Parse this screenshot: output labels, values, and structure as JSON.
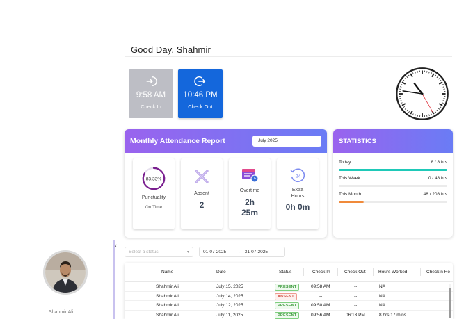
{
  "greeting": "Good Day, Shahmir",
  "check_in": {
    "time": "9:58 AM",
    "label": "Check In"
  },
  "check_out": {
    "time": "10:46 PM",
    "label": "Check Out"
  },
  "clock": {
    "hour": 10,
    "minute": 46,
    "second": 25
  },
  "report": {
    "title": "Monthly Attendance Report",
    "month": "July 2025",
    "cards": {
      "punctuality": {
        "percent_text": "83.33%",
        "percent": 83.33,
        "label": "Punctuality",
        "sub": "On Time"
      },
      "absent": {
        "label": "Absent",
        "value": "2"
      },
      "overtime": {
        "label": "Overtime",
        "value_h": "2h",
        "value_m": "25m"
      },
      "extra": {
        "label_1": "Extra",
        "label_2": "Hours",
        "value": "0h 0m"
      }
    }
  },
  "statistics": {
    "title": "STATISTICS",
    "rows": [
      {
        "label": "Today",
        "value": "8 / 8 hrs",
        "fraction": 1.0,
        "color": "#1fc9b8"
      },
      {
        "label": "This Week",
        "value": "0 / 48 hrs",
        "fraction": 0.0,
        "color": "#1fc9b8"
      },
      {
        "label": "This Month",
        "value": "48 / 208 hrs",
        "fraction": 0.23,
        "color": "#f08a3a"
      }
    ]
  },
  "profile": {
    "name": "Shahmir Ali"
  },
  "filters": {
    "status_placeholder": "Select a status",
    "date_from": "01-07-2025",
    "date_to": "31-07-2025",
    "arrow": "→"
  },
  "table": {
    "headers": [
      "Name",
      "Date",
      "Status",
      "Check In",
      "Check Out",
      "Hours Worked",
      "CheckIn Re"
    ],
    "rows": [
      {
        "name": "Shahmir Ali",
        "date": "July 15, 2025",
        "status": "PRESENT",
        "check_in": "09:58 AM",
        "check_out": "--",
        "hours": "NA"
      },
      {
        "name": "Shahmir Ali",
        "date": "July 14, 2025",
        "status": "ABSENT",
        "check_in": "--",
        "check_out": "--",
        "hours": "NA"
      },
      {
        "name": "Shahmir Ali",
        "date": "July 12, 2025",
        "status": "PRESENT",
        "check_in": "09:50 AM",
        "check_out": "--",
        "hours": "NA"
      },
      {
        "name": "Shahmir Ali",
        "date": "July 11, 2025",
        "status": "PRESENT",
        "check_in": "09:56 AM",
        "check_out": "06:13 PM",
        "hours": "8 hrs 17 mins"
      }
    ]
  },
  "colors": {
    "accent_blue": "#1467dc",
    "gradient_start": "#9a63ee",
    "gradient_end": "#6a7cf5",
    "ring": "#7a1f8f"
  }
}
